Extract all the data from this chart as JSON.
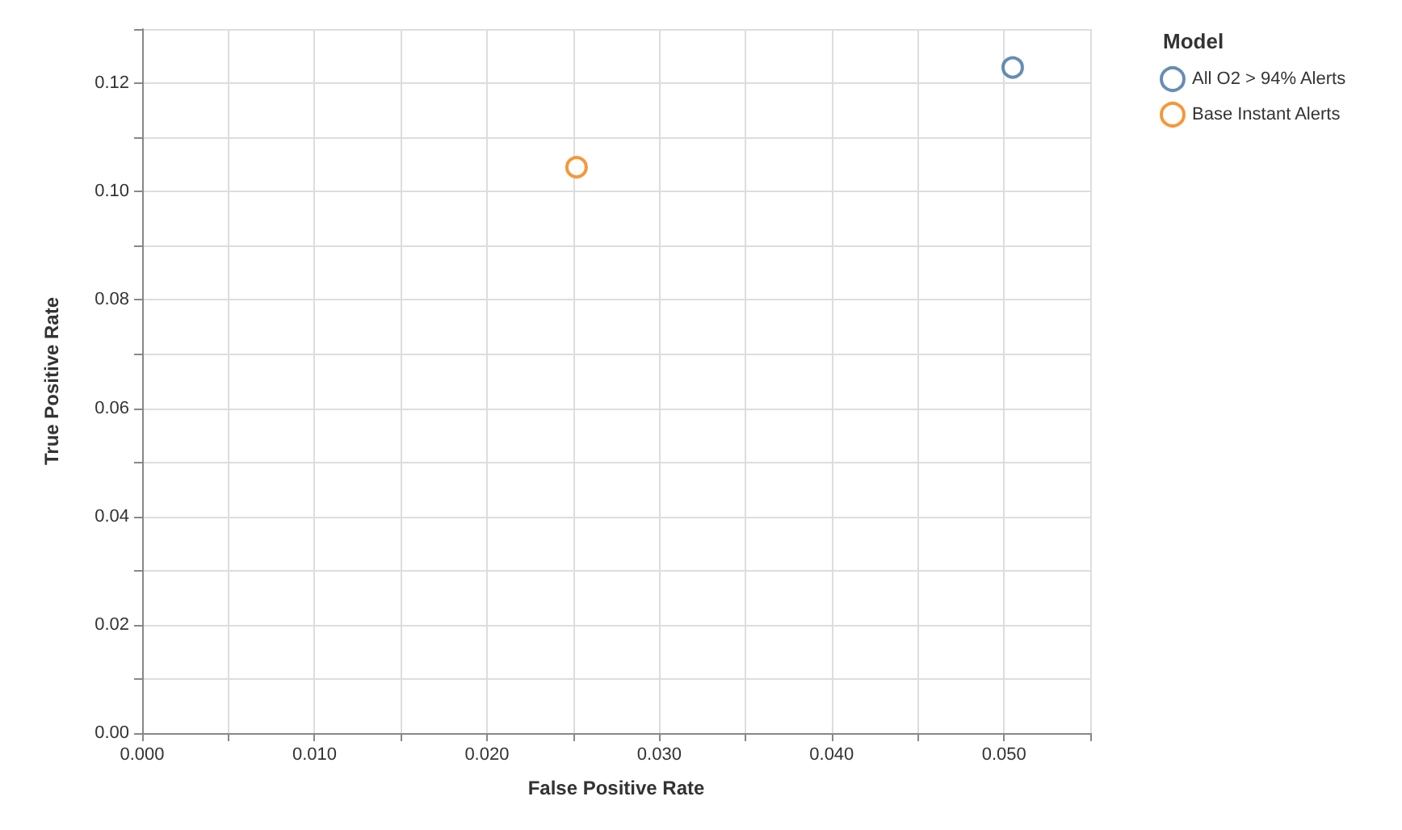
{
  "chart_data": {
    "type": "scatter",
    "xlabel": "False Positive Rate",
    "ylabel": "True Positive Rate",
    "legend_title": "Model",
    "series": [
      {
        "name": "All O2 > 94% Alerts",
        "color": "#4c78a8",
        "x": [
          0.0505
        ],
        "values": [
          0.1229
        ]
      },
      {
        "name": "Base Instant Alerts",
        "color": "#f58518",
        "x": [
          0.0252
        ],
        "values": [
          0.1045
        ]
      }
    ],
    "xlim": [
      0,
      0.055
    ],
    "xticks": [
      {
        "value": 0,
        "label": "0.000"
      },
      {
        "value": 0.005,
        "label": null
      },
      {
        "value": 0.01,
        "label": "0.010"
      },
      {
        "value": 0.015,
        "label": null
      },
      {
        "value": 0.02,
        "label": "0.020"
      },
      {
        "value": 0.025,
        "label": null
      },
      {
        "value": 0.03,
        "label": "0.030"
      },
      {
        "value": 0.035,
        "label": null
      },
      {
        "value": 0.04,
        "label": "0.040"
      },
      {
        "value": 0.045,
        "label": null
      },
      {
        "value": 0.05,
        "label": "0.050"
      }
    ],
    "ylim": [
      0,
      0.13
    ],
    "yticks": [
      {
        "value": 0,
        "label": "0.00"
      },
      {
        "value": 0.01,
        "label": null
      },
      {
        "value": 0.02,
        "label": "0.02"
      },
      {
        "value": 0.03,
        "label": null
      },
      {
        "value": 0.04,
        "label": "0.04"
      },
      {
        "value": 0.05,
        "label": null
      },
      {
        "value": 0.06,
        "label": "0.06"
      },
      {
        "value": 0.07,
        "label": null
      },
      {
        "value": 0.08,
        "label": "0.08"
      },
      {
        "value": 0.09,
        "label": null
      },
      {
        "value": 0.1,
        "label": "0.10"
      },
      {
        "value": 0.11,
        "label": null
      },
      {
        "value": 0.12,
        "label": "0.12"
      }
    ],
    "grid": true,
    "legend": "top right",
    "marker": "circle"
  }
}
